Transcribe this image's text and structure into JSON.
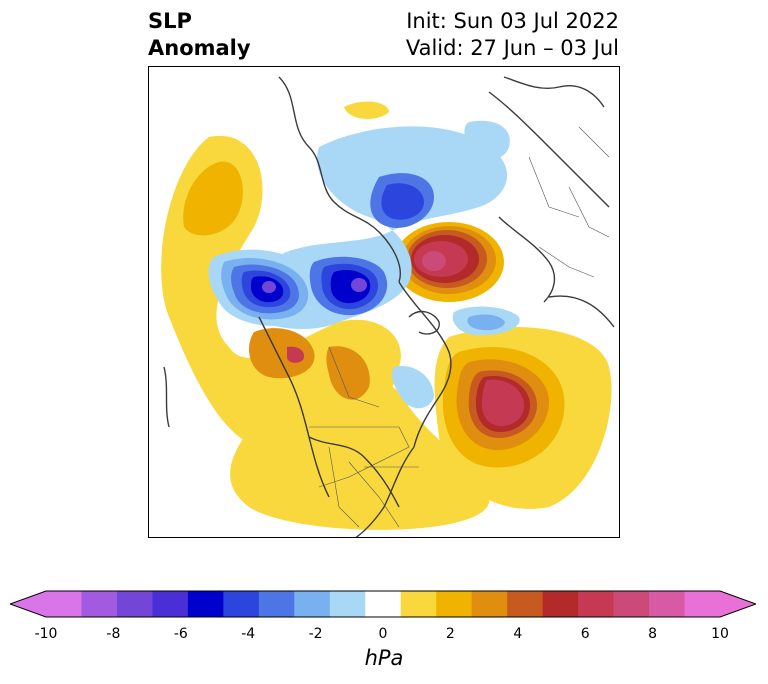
{
  "title": {
    "left": [
      "SLP",
      "Anomaly"
    ],
    "right": [
      "Init: Sun 03 Jul 2022",
      "Valid: 27 Jun – 03 Jul"
    ]
  },
  "colorbar": {
    "unit": "hPa",
    "ticks": [
      "-10",
      "-8",
      "-6",
      "-4",
      "-2",
      "0",
      "2",
      "4",
      "6",
      "8",
      "10"
    ],
    "colors": [
      "#d975e8",
      "#a25be0",
      "#7446d8",
      "#4a2fd6",
      "#0000cc",
      "#2c46dd",
      "#4e75e6",
      "#79b0f0",
      "#a9d8f6",
      "#ffffff",
      "#f9d83e",
      "#f0b400",
      "#e08e10",
      "#c75a1e",
      "#b22a2a",
      "#c53a52",
      "#cc4a78",
      "#d95aa4",
      "#e870d6"
    ],
    "extend_left": "#d975e8",
    "extend_right": "#e870d6"
  }
}
